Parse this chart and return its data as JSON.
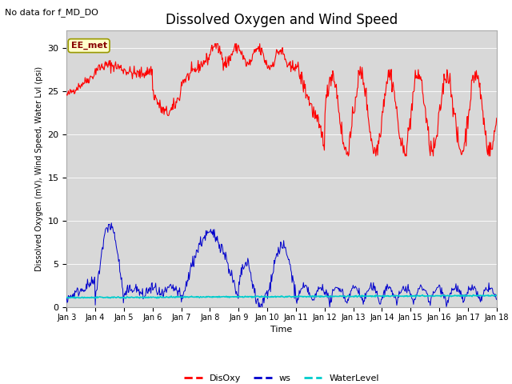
{
  "title": "Dissolved Oxygen and Wind Speed",
  "top_left_text": "No data for f_MD_DO",
  "annotation_text": "EE_met",
  "xlabel": "Time",
  "ylabel": "Dissolved Oxygen (mV), Wind Speed, Water Lvl (psi)",
  "ylim": [
    0,
    32
  ],
  "yticks": [
    0,
    5,
    10,
    15,
    20,
    25,
    30
  ],
  "xticklabels": [
    "Jan 3",
    "Jan 4",
    "Jan 5",
    "Jan 6",
    "Jan 7",
    "Jan 8",
    "Jan 9",
    "Jan 10",
    "Jan 11",
    "Jan 12",
    "Jan 13",
    "Jan 14",
    "Jan 15",
    "Jan 16",
    "Jan 17",
    "Jan 18"
  ],
  "disoxy_color": "#ff0000",
  "ws_color": "#0000cc",
  "wl_color": "#00cccc",
  "bg_color": "#d8d8d8",
  "title_fontsize": 12,
  "axis_fontsize": 8,
  "tick_fontsize": 8,
  "topleft_fontsize": 8,
  "annot_fontsize": 8,
  "legend_fontsize": 8
}
